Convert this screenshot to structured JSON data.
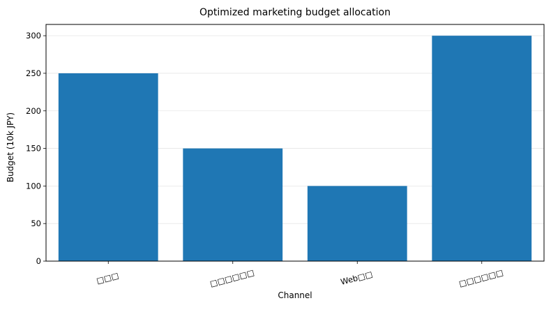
{
  "chart_data": {
    "type": "bar",
    "title": "Optimized marketing budget allocation",
    "xlabel": "Channel",
    "ylabel": "Budget (10k JPY)",
    "categories": [
      "□□□",
      "□□□□□□",
      "Web□□",
      "□□□□□□"
    ],
    "values": [
      250,
      150,
      100,
      300
    ],
    "ylim": [
      0,
      315
    ],
    "yticks": [
      0,
      50,
      100,
      150,
      200,
      250,
      300
    ],
    "grid": "y",
    "legend": "none",
    "bar_color": "#1f77b4",
    "grid_color": "#e6e6e6",
    "xtick_rotation_deg": -15
  }
}
